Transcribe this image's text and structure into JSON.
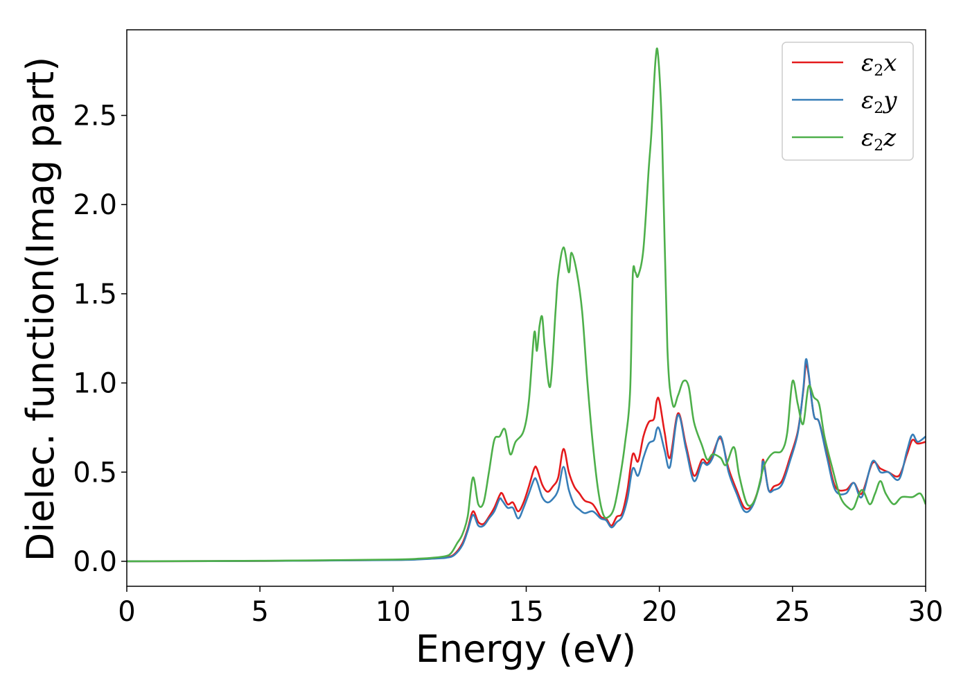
{
  "chart_data": {
    "type": "line",
    "title": "",
    "xlabel": "Energy (eV)",
    "ylabel": "Dielec. function(Imag part)",
    "xlim": [
      0,
      30
    ],
    "ylim": [
      -0.14,
      2.98
    ],
    "xticks": [
      0,
      5,
      10,
      15,
      20,
      25,
      30
    ],
    "yticks": [
      0.0,
      0.5,
      1.0,
      1.5,
      2.0,
      2.5
    ],
    "grid": false,
    "legend_position": "top-right",
    "colors": {
      "x": "#e41a1c",
      "y": "#377eb8",
      "z": "#4daf4a"
    },
    "legend": [
      {
        "key": "x",
        "base": "ε",
        "sub": "2",
        "var": "x"
      },
      {
        "key": "y",
        "base": "ε",
        "sub": "2",
        "var": "y"
      },
      {
        "key": "z",
        "base": "ε",
        "sub": "2",
        "var": "z"
      }
    ],
    "series": {
      "x": {
        "x": [
          0,
          5,
          10,
          11,
          11.5,
          12,
          12.3,
          12.6,
          12.8,
          13.0,
          13.2,
          13.4,
          13.6,
          13.8,
          14.0,
          14.1,
          14.3,
          14.5,
          14.7,
          14.9,
          15.1,
          15.3,
          15.4,
          15.6,
          15.8,
          16.0,
          16.2,
          16.4,
          16.6,
          16.8,
          17.0,
          17.2,
          17.5,
          17.8,
          18.0,
          18.2,
          18.4,
          18.6,
          18.8,
          19.0,
          19.2,
          19.4,
          19.6,
          19.8,
          19.9,
          20.0,
          20.2,
          20.4,
          20.7,
          21.0,
          21.3,
          21.6,
          21.8,
          22.0,
          22.3,
          22.6,
          22.9,
          23.2,
          23.5,
          23.8,
          23.9,
          24.1,
          24.3,
          24.6,
          24.9,
          25.2,
          25.4,
          25.5,
          25.6,
          25.8,
          26.0,
          26.3,
          26.6,
          27.0,
          27.3,
          27.6,
          28.0,
          28.3,
          28.6,
          29.0,
          29.3,
          29.5,
          29.7,
          30.0
        ],
        "y": [
          0.0,
          0.002,
          0.008,
          0.012,
          0.016,
          0.022,
          0.04,
          0.1,
          0.18,
          0.28,
          0.22,
          0.21,
          0.25,
          0.3,
          0.37,
          0.38,
          0.32,
          0.33,
          0.28,
          0.33,
          0.42,
          0.52,
          0.52,
          0.43,
          0.39,
          0.42,
          0.47,
          0.63,
          0.5,
          0.42,
          0.38,
          0.34,
          0.32,
          0.25,
          0.24,
          0.2,
          0.25,
          0.27,
          0.4,
          0.6,
          0.56,
          0.7,
          0.78,
          0.8,
          0.9,
          0.9,
          0.72,
          0.58,
          0.83,
          0.65,
          0.48,
          0.57,
          0.55,
          0.6,
          0.69,
          0.52,
          0.4,
          0.3,
          0.32,
          0.45,
          0.57,
          0.4,
          0.42,
          0.45,
          0.58,
          0.73,
          0.95,
          1.1,
          1.05,
          0.82,
          0.78,
          0.6,
          0.42,
          0.4,
          0.44,
          0.38,
          0.55,
          0.52,
          0.5,
          0.48,
          0.6,
          0.68,
          0.66,
          0.67
        ]
      },
      "y": {
        "x": [
          0,
          5,
          10,
          11,
          11.5,
          12,
          12.3,
          12.6,
          12.8,
          13.0,
          13.2,
          13.4,
          13.6,
          13.8,
          14.0,
          14.1,
          14.3,
          14.5,
          14.7,
          14.9,
          15.1,
          15.3,
          15.4,
          15.6,
          15.8,
          16.0,
          16.2,
          16.4,
          16.6,
          16.8,
          17.0,
          17.2,
          17.5,
          17.8,
          18.0,
          18.2,
          18.4,
          18.6,
          18.8,
          19.0,
          19.2,
          19.4,
          19.6,
          19.8,
          19.9,
          20.0,
          20.2,
          20.4,
          20.7,
          21.0,
          21.3,
          21.6,
          21.8,
          22.0,
          22.3,
          22.6,
          22.9,
          23.2,
          23.5,
          23.8,
          23.9,
          24.1,
          24.3,
          24.6,
          24.9,
          25.2,
          25.4,
          25.5,
          25.6,
          25.8,
          26.0,
          26.3,
          26.6,
          27.0,
          27.3,
          27.6,
          28.0,
          28.3,
          28.6,
          29.0,
          29.3,
          29.5,
          29.7,
          30.0
        ],
        "y": [
          0.0,
          0.002,
          0.007,
          0.011,
          0.015,
          0.02,
          0.035,
          0.09,
          0.17,
          0.26,
          0.2,
          0.2,
          0.24,
          0.28,
          0.35,
          0.34,
          0.3,
          0.3,
          0.24,
          0.3,
          0.38,
          0.46,
          0.45,
          0.36,
          0.33,
          0.35,
          0.4,
          0.53,
          0.4,
          0.32,
          0.29,
          0.27,
          0.28,
          0.24,
          0.23,
          0.19,
          0.22,
          0.25,
          0.35,
          0.52,
          0.48,
          0.58,
          0.66,
          0.68,
          0.74,
          0.74,
          0.62,
          0.53,
          0.82,
          0.63,
          0.45,
          0.55,
          0.54,
          0.58,
          0.7,
          0.5,
          0.38,
          0.28,
          0.31,
          0.45,
          0.56,
          0.4,
          0.4,
          0.43,
          0.56,
          0.72,
          0.96,
          1.13,
          1.06,
          0.82,
          0.78,
          0.58,
          0.4,
          0.38,
          0.44,
          0.36,
          0.56,
          0.5,
          0.5,
          0.46,
          0.62,
          0.71,
          0.67,
          0.7
        ]
      },
      "z": {
        "x": [
          0,
          5,
          10,
          11,
          11.5,
          12,
          12.2,
          12.4,
          12.6,
          12.8,
          13.0,
          13.2,
          13.4,
          13.6,
          13.8,
          14.0,
          14.2,
          14.4,
          14.6,
          14.9,
          15.1,
          15.3,
          15.4,
          15.5,
          15.6,
          15.7,
          15.9,
          16.1,
          16.2,
          16.4,
          16.6,
          16.7,
          16.9,
          17.1,
          17.3,
          17.5,
          17.7,
          17.9,
          18.1,
          18.3,
          18.5,
          18.7,
          18.9,
          19.0,
          19.1,
          19.2,
          19.4,
          19.6,
          19.7,
          19.85,
          19.95,
          20.1,
          20.3,
          20.5,
          20.7,
          20.9,
          21.1,
          21.3,
          21.6,
          21.8,
          22.0,
          22.3,
          22.5,
          22.8,
          23.0,
          23.3,
          23.6,
          23.9,
          24.1,
          24.3,
          24.6,
          24.8,
          25.0,
          25.2,
          25.4,
          25.6,
          25.8,
          26.0,
          26.2,
          26.5,
          26.8,
          27.1,
          27.3,
          27.6,
          27.9,
          28.1,
          28.3,
          28.5,
          28.8,
          29.1,
          29.5,
          29.8,
          30.0
        ],
        "y": [
          0.0,
          0.003,
          0.01,
          0.015,
          0.02,
          0.03,
          0.05,
          0.1,
          0.15,
          0.25,
          0.47,
          0.32,
          0.33,
          0.5,
          0.68,
          0.7,
          0.74,
          0.6,
          0.67,
          0.73,
          0.9,
          1.28,
          1.18,
          1.32,
          1.37,
          1.2,
          0.98,
          1.4,
          1.6,
          1.76,
          1.62,
          1.73,
          1.62,
          1.4,
          1.0,
          0.66,
          0.4,
          0.26,
          0.25,
          0.3,
          0.45,
          0.65,
          0.95,
          1.6,
          1.62,
          1.6,
          1.75,
          2.2,
          2.4,
          2.8,
          2.84,
          2.4,
          1.2,
          0.88,
          0.93,
          1.01,
          0.98,
          0.78,
          0.65,
          0.57,
          0.6,
          0.58,
          0.54,
          0.64,
          0.48,
          0.32,
          0.35,
          0.52,
          0.58,
          0.61,
          0.62,
          0.72,
          1.01,
          0.88,
          0.77,
          0.98,
          0.92,
          0.88,
          0.7,
          0.52,
          0.36,
          0.3,
          0.3,
          0.4,
          0.32,
          0.38,
          0.45,
          0.38,
          0.32,
          0.36,
          0.36,
          0.38,
          0.32
        ]
      }
    }
  }
}
